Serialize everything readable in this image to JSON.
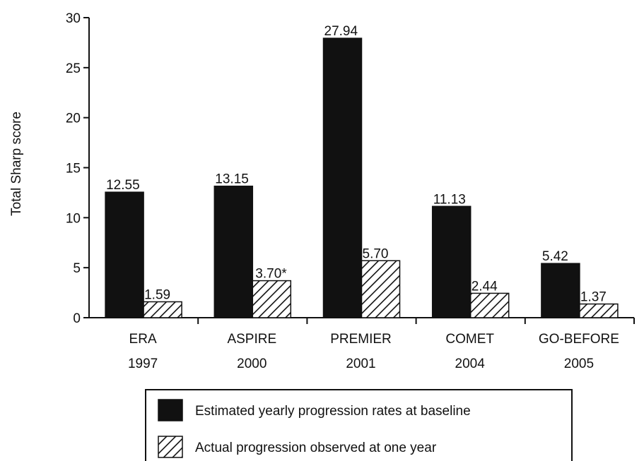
{
  "chart_data": {
    "type": "bar",
    "ylabel": "Total Sharp score",
    "xlabel": "",
    "ylim": [
      0,
      30
    ],
    "yticks": [
      0,
      5,
      10,
      15,
      20,
      25,
      30
    ],
    "categories": [
      [
        "ERA",
        "1997"
      ],
      [
        "ASPIRE",
        "2000"
      ],
      [
        "PREMIER",
        "2001"
      ],
      [
        "COMET",
        "2004"
      ],
      [
        "GO-BEFORE",
        "2005"
      ]
    ],
    "series": [
      {
        "name": "Estimated yearly progression rates at baseline",
        "fill": "solid",
        "values": [
          12.55,
          13.15,
          27.94,
          11.13,
          5.42
        ],
        "labels": [
          "12.55",
          "13.15",
          "27.94",
          "11.13",
          "5.42"
        ]
      },
      {
        "name": "Actual progression observed at one year",
        "fill": "hatched",
        "values": [
          1.59,
          3.7,
          5.7,
          2.44,
          1.37
        ],
        "labels": [
          "1.59",
          "3.70*",
          "5.70",
          "2.44",
          "1.37"
        ]
      }
    ],
    "grid": false,
    "legend_position": "bottom",
    "colors": {
      "bar": "#111111",
      "hatch_bg": "#ffffff",
      "axis": "#111111"
    }
  }
}
